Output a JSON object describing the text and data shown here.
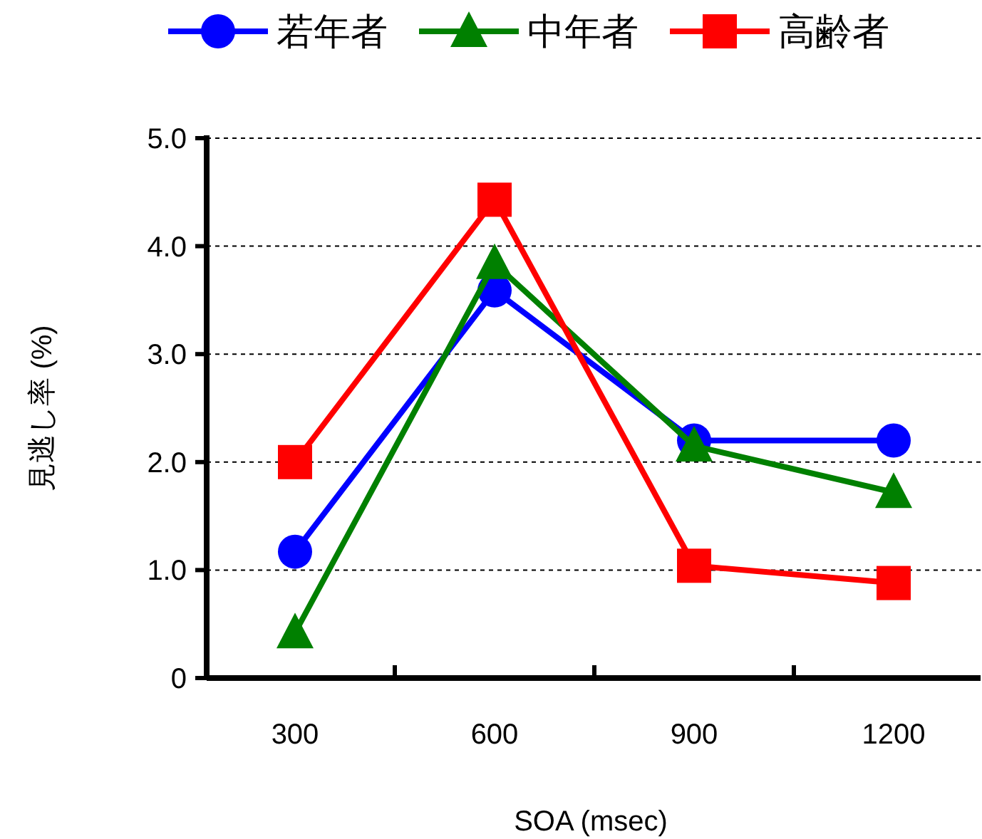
{
  "chart_data": {
    "type": "line",
    "xlabel": "SOA (msec)",
    "ylabel": "見逃し率 (%)",
    "categories": [
      "300",
      "600",
      "900",
      "1200"
    ],
    "series": [
      {
        "name": "若年者",
        "color": "#0000ff",
        "marker": "circle",
        "values": [
          1.17,
          3.59,
          2.2,
          2.2
        ]
      },
      {
        "name": "中年者",
        "color": "#008000",
        "marker": "triangle",
        "values": [
          0.42,
          3.84,
          2.15,
          1.72
        ]
      },
      {
        "name": "高齢者",
        "color": "#ff0000",
        "marker": "square",
        "values": [
          2.0,
          4.43,
          1.04,
          0.88
        ]
      }
    ],
    "ylim": [
      0,
      5
    ],
    "yticks": [
      0,
      {
        "value": 1,
        "label": "1.0"
      },
      {
        "value": 2,
        "label": "2.0"
      },
      {
        "value": 3,
        "label": "3.0"
      },
      {
        "value": 4,
        "label": "4.0"
      },
      {
        "value": 5,
        "label": "5.0"
      }
    ],
    "grid": "y",
    "legend": "top",
    "line_style": "solid"
  }
}
